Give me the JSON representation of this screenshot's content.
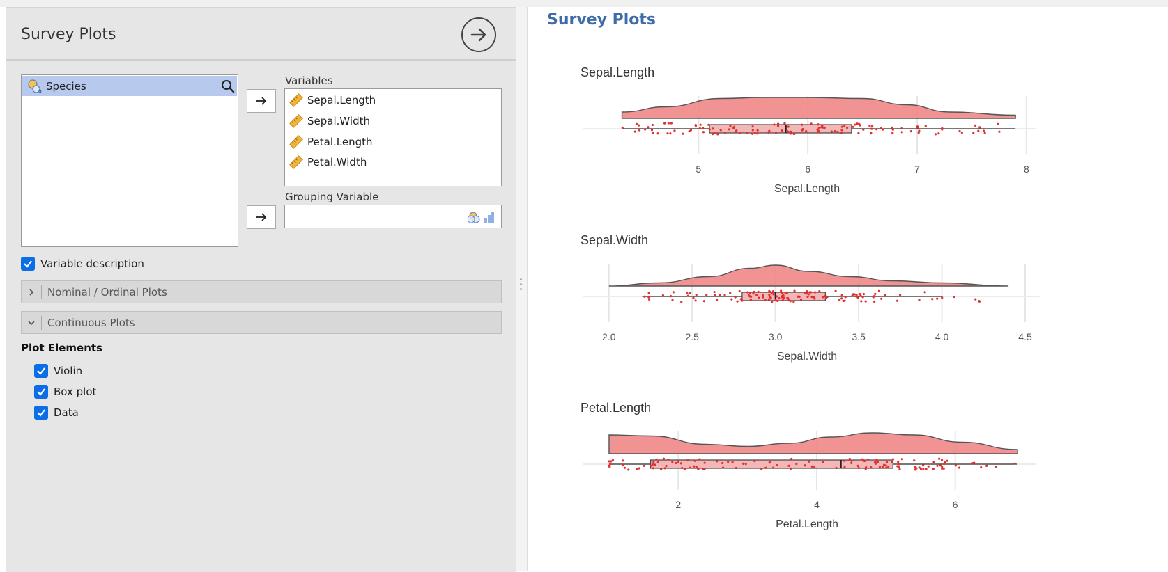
{
  "options_panel": {
    "title": "Survey Plots",
    "source_variables": [
      {
        "label": "Species",
        "icon": "nominal-variable-icon"
      }
    ],
    "variables_label": "Variables",
    "variables": [
      {
        "label": "Sepal.Length",
        "icon": "continuous-variable-icon"
      },
      {
        "label": "Sepal.Width",
        "icon": "continuous-variable-icon"
      },
      {
        "label": "Petal.Length",
        "icon": "continuous-variable-icon"
      },
      {
        "label": "Petal.Width",
        "icon": "continuous-variable-icon"
      }
    ],
    "grouping_label": "Grouping Variable",
    "grouping_value": "",
    "variable_description": {
      "label": "Variable description",
      "checked": true
    },
    "sections": [
      {
        "label": "Nominal / Ordinal Plots",
        "expanded": false
      },
      {
        "label": "Continuous Plots",
        "expanded": true
      }
    ],
    "plot_elements_heading": "Plot Elements",
    "plot_elements": [
      {
        "label": "Violin",
        "checked": true
      },
      {
        "label": "Box plot",
        "checked": true
      },
      {
        "label": "Data",
        "checked": true
      }
    ]
  },
  "results": {
    "title": "Survey Plots"
  },
  "colors": {
    "accent": "#3f6ba8",
    "checkbox": "#0b6ee6",
    "violin_fill": "#f08080",
    "point_color": "#e03030",
    "selection": "#b8c9ee"
  },
  "chart_data": [
    {
      "type": "raincloud",
      "title": "Sepal.Length",
      "xlabel": "Sepal.Length",
      "xlim": [
        4.3,
        7.9
      ],
      "ticks": [
        5,
        6,
        7,
        8
      ],
      "tick_labels": [
        "5",
        "6",
        "7",
        "8"
      ],
      "box": {
        "min": 4.3,
        "q1": 5.1,
        "median": 5.8,
        "q3": 6.4,
        "max": 7.9
      },
      "density": [
        [
          4.3,
          0.3
        ],
        [
          4.7,
          0.55
        ],
        [
          5.2,
          0.95
        ],
        [
          5.6,
          1.0
        ],
        [
          6.0,
          1.0
        ],
        [
          6.5,
          0.95
        ],
        [
          6.9,
          0.65
        ],
        [
          7.3,
          0.3
        ],
        [
          7.9,
          0.15
        ]
      ]
    },
    {
      "type": "raincloud",
      "title": "Sepal.Width",
      "xlabel": "Sepal.Width",
      "xlim": [
        2.0,
        4.4
      ],
      "ticks": [
        2.0,
        2.5,
        3.0,
        3.5,
        4.0,
        4.5
      ],
      "tick_labels": [
        "2.0",
        "2.5",
        "3.0",
        "3.5",
        "4.0",
        "4.5"
      ],
      "box": {
        "min": 2.2,
        "q1": 2.8,
        "median": 3.0,
        "q3": 3.3,
        "max": 4.0
      },
      "density": [
        [
          2.0,
          0.0
        ],
        [
          2.3,
          0.15
        ],
        [
          2.6,
          0.45
        ],
        [
          2.85,
          0.85
        ],
        [
          3.0,
          1.0
        ],
        [
          3.2,
          0.7
        ],
        [
          3.45,
          0.45
        ],
        [
          3.7,
          0.25
        ],
        [
          4.0,
          0.15
        ],
        [
          4.4,
          0.0
        ]
      ]
    },
    {
      "type": "raincloud",
      "title": "Petal.Length",
      "xlabel": "Petal.Length",
      "xlim": [
        1.0,
        6.9
      ],
      "ticks": [
        2,
        4,
        6
      ],
      "tick_labels": [
        "2",
        "4",
        "6"
      ],
      "box": {
        "min": 1.0,
        "q1": 1.6,
        "median": 4.35,
        "q3": 5.1,
        "max": 6.9
      },
      "density": [
        [
          1.0,
          0.9
        ],
        [
          1.6,
          0.85
        ],
        [
          2.4,
          0.45
        ],
        [
          3.0,
          0.35
        ],
        [
          3.6,
          0.5
        ],
        [
          4.2,
          0.8
        ],
        [
          4.8,
          1.0
        ],
        [
          5.4,
          0.9
        ],
        [
          6.1,
          0.55
        ],
        [
          6.9,
          0.2
        ]
      ]
    }
  ]
}
